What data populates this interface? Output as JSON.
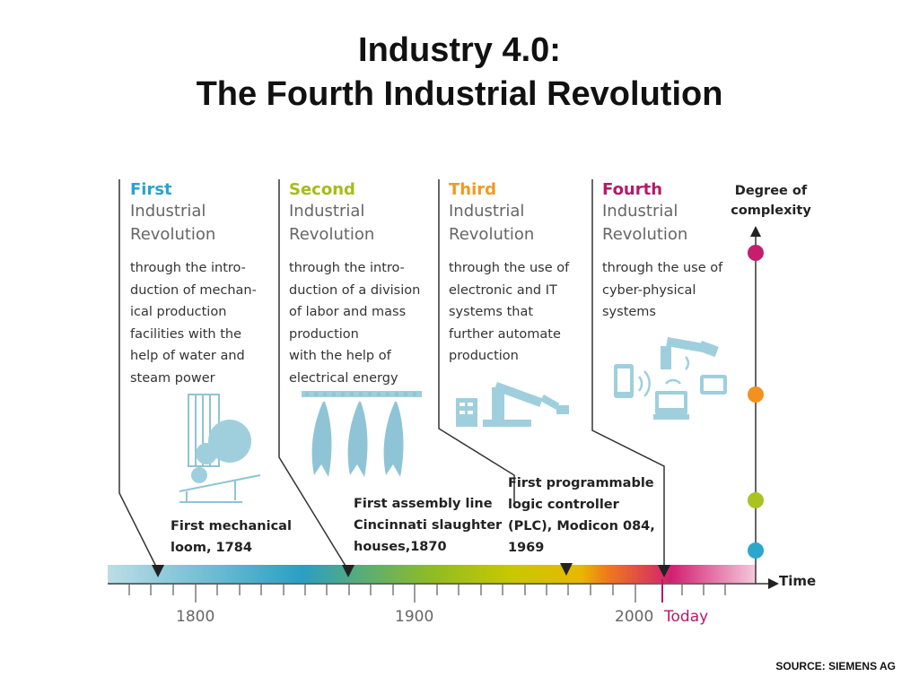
{
  "title": {
    "line1": "Industry 4.0:",
    "line2": "The Fourth Industrial Revolution"
  },
  "revolutions": [
    {
      "ordinal": "First",
      "label_line1": "Industrial",
      "label_line2": "Revolution",
      "description": [
        "through the intro-",
        "duction of mechan-",
        "ical production",
        "facilities with the",
        "help of water and",
        "steam power"
      ],
      "color": "#2aa3c9"
    },
    {
      "ordinal": "Second",
      "label_line1": "Industrial",
      "label_line2": "Revolution",
      "description": [
        "through the intro-",
        "duction of a division",
        "of labor and mass",
        "production",
        "with the help of",
        "electrical energy"
      ],
      "color": "#a4bd18"
    },
    {
      "ordinal": "Third",
      "label_line1": "Industrial",
      "label_line2": "Revolution",
      "description": [
        "through the use of",
        "electronic and IT",
        "systems that",
        "further automate",
        "production"
      ],
      "color": "#f19a1f"
    },
    {
      "ordinal": "Fourth",
      "label_line1": "Industrial",
      "label_line2": "Revolution",
      "description": [
        "through the use of",
        "cyber-physical",
        "systems"
      ],
      "color": "#b5196a"
    }
  ],
  "milestones": [
    {
      "lines": [
        "First mechanical",
        "loom, 1784"
      ]
    },
    {
      "lines": [
        "First assembly line",
        "Cincinnati slaughter",
        "houses,1870"
      ]
    },
    {
      "lines": [
        "First programmable",
        "logic controller",
        "(PLC), Modicon 084,",
        "1969"
      ]
    }
  ],
  "complexity_axis": {
    "label_line1": "Degree of",
    "label_line2": "complexity"
  },
  "timeline": {
    "axis_label": "Time",
    "ticks": [
      "1800",
      "1900",
      "2000"
    ],
    "today_label": "Today",
    "today_color": "#b5196a"
  },
  "source": "SOURCE: SIEMENS AG"
}
